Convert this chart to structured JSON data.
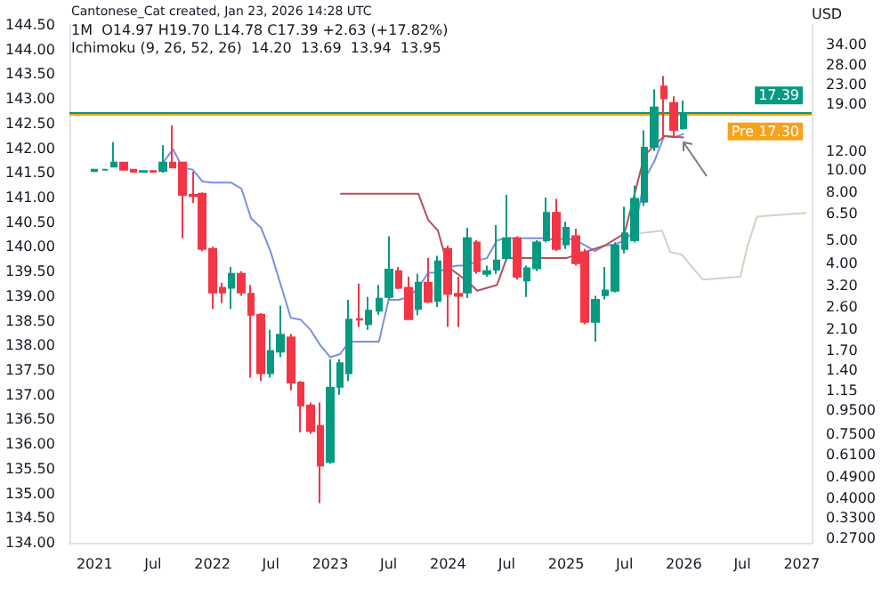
{
  "chart_data": {
    "type": "candlestick",
    "annotations": [
      "Cantonese_Cat created, Jan 23, 2026 14:28 UTC",
      "1M  O14.97 H19.70 L14.78 C17.39 +2.63 (+17.82%)",
      "Ichimoku (9, 26, 52, 26)  14.20  13.69  13.94  13.95"
    ],
    "y2label": "USD",
    "xlim": [
      "2020-10-15",
      "2027-02-01"
    ],
    "xticks": [
      {
        "value": "2021-01",
        "label": "2021"
      },
      {
        "value": "2021-07",
        "label": "Jul"
      },
      {
        "value": "2022-01",
        "label": "2022"
      },
      {
        "value": "2022-07",
        "label": "Jul"
      },
      {
        "value": "2023-01",
        "label": "2023"
      },
      {
        "value": "2023-07",
        "label": "Jul"
      },
      {
        "value": "2024-01",
        "label": "2024"
      },
      {
        "value": "2024-07",
        "label": "Jul"
      },
      {
        "value": "2025-01",
        "label": "2025"
      },
      {
        "value": "2025-07",
        "label": "Jul"
      },
      {
        "value": "2026-01",
        "label": "2026"
      },
      {
        "value": "2026-07",
        "label": "Jul"
      },
      {
        "value": "2027-01",
        "label": "2027"
      }
    ],
    "ylim": [
      134,
      144.5
    ],
    "yticks": [
      {
        "value": 134,
        "label": "134.00"
      },
      {
        "value": 134.5,
        "label": "134.50"
      },
      {
        "value": 135,
        "label": "135.00"
      },
      {
        "value": 135.5,
        "label": "135.50"
      },
      {
        "value": 136,
        "label": "136.00"
      },
      {
        "value": 136.5,
        "label": "136.50"
      },
      {
        "value": 137,
        "label": "137.00"
      },
      {
        "value": 137.5,
        "label": "137.50"
      },
      {
        "value": 138,
        "label": "138.00"
      },
      {
        "value": 138.5,
        "label": "138.50"
      },
      {
        "value": 139,
        "label": "139.00"
      },
      {
        "value": 139.5,
        "label": "139.50"
      },
      {
        "value": 140,
        "label": "140.00"
      },
      {
        "value": 140.5,
        "label": "140.50"
      },
      {
        "value": 141,
        "label": "141.00"
      },
      {
        "value": 141.5,
        "label": "141.50"
      },
      {
        "value": 142,
        "label": "142.00"
      },
      {
        "value": 142.5,
        "label": "142.50"
      },
      {
        "value": 143,
        "label": "143.00"
      },
      {
        "value": 143.5,
        "label": "143.50"
      },
      {
        "value": 144,
        "label": "144.00"
      },
      {
        "value": 144.5,
        "label": "144.50"
      }
    ],
    "log": "y2",
    "y2lim": [
      0.258,
      41.3
    ],
    "y2ticks": [
      {
        "value": 34,
        "label": "34.00"
      },
      {
        "value": 28,
        "label": "28.00"
      },
      {
        "value": 23,
        "label": "23.00"
      },
      {
        "value": 19,
        "label": "19.00"
      },
      {
        "value": 12,
        "label": "12.00"
      },
      {
        "value": 10,
        "label": "10.00"
      },
      {
        "value": 8,
        "label": "8.00"
      },
      {
        "value": 6.5,
        "label": "6.50"
      },
      {
        "value": 5,
        "label": "5.00"
      },
      {
        "value": 4,
        "label": "4.00"
      },
      {
        "value": 3.2,
        "label": "3.20"
      },
      {
        "value": 2.6,
        "label": "2.60"
      },
      {
        "value": 2.1,
        "label": "2.10"
      },
      {
        "value": 1.7,
        "label": "1.70"
      },
      {
        "value": 1.4,
        "label": "1.40"
      },
      {
        "value": 1.15,
        "label": "1.15"
      },
      {
        "value": 0.95,
        "label": "0.9500"
      },
      {
        "value": 0.75,
        "label": "0.7500"
      },
      {
        "value": 0.61,
        "label": "0.6100"
      },
      {
        "value": 0.49,
        "label": "0.4900"
      },
      {
        "value": 0.4,
        "label": "0.4000"
      },
      {
        "value": 0.33,
        "label": "0.3300"
      },
      {
        "value": 0.27,
        "label": "0.2700"
      }
    ],
    "grid": false,
    "ref_lines": [
      {
        "axis": "y2",
        "value": 17.39,
        "label": "17.39",
        "color": "#089981"
      },
      {
        "axis": "y2",
        "value": 17.3,
        "label": "Pre 17.30",
        "color": "#f7a21b"
      }
    ],
    "series": [
      {
        "axis": "y2",
        "x": [
          "2021-01",
          "2021-02",
          "2021-03",
          "2021-04",
          "2021-05",
          "2021-06",
          "2021-07",
          "2021-08",
          "2021-09",
          "2021-10",
          "2021-11",
          "2021-12",
          "2022-01",
          "2022-02",
          "2022-03",
          "2022-04",
          "2022-05",
          "2022-06",
          "2022-07",
          "2022-08",
          "2022-09",
          "2022-10",
          "2022-11",
          "2022-12",
          "2023-01",
          "2023-02",
          "2023-03",
          "2023-04",
          "2023-05",
          "2023-06",
          "2023-07",
          "2023-08",
          "2023-09",
          "2023-10",
          "2023-11",
          "2023-12",
          "2024-01",
          "2024-02",
          "2024-03",
          "2024-04",
          "2024-05",
          "2024-06",
          "2024-07",
          "2024-08",
          "2024-09",
          "2024-10",
          "2024-11",
          "2024-12",
          "2025-01",
          "2025-02",
          "2025-03",
          "2025-04",
          "2025-05",
          "2025-06",
          "2025-07",
          "2025-08",
          "2025-09",
          "2025-10",
          "2025-11",
          "2025-12",
          "2026-01"
        ],
        "ohlc": [
          [
            9.85,
            10.0,
            9.8,
            10.0
          ],
          [
            10.0,
            10.05,
            9.95,
            10.0
          ],
          [
            10.3,
            13.1,
            10.2,
            10.7
          ],
          [
            10.7,
            10.8,
            10.0,
            10.0
          ],
          [
            10.0,
            10.05,
            9.8,
            9.8
          ],
          [
            9.8,
            9.85,
            9.75,
            9.85
          ],
          [
            9.85,
            9.9,
            9.8,
            9.8
          ],
          [
            9.85,
            12.7,
            9.7,
            10.7
          ],
          [
            10.7,
            15.4,
            10.2,
            10.2
          ],
          [
            10.7,
            10.8,
            5.1,
            7.8
          ],
          [
            7.8,
            9.8,
            7.2,
            7.7
          ],
          [
            7.9,
            8.0,
            4.5,
            4.6
          ],
          [
            4.6,
            4.7,
            2.55,
            3.0
          ],
          [
            3.14,
            3.3,
            2.7,
            3.0
          ],
          [
            3.14,
            3.85,
            2.55,
            3.6
          ],
          [
            3.6,
            3.7,
            2.9,
            3.0
          ],
          [
            2.96,
            3.23,
            1.3,
            2.41
          ],
          [
            2.41,
            2.45,
            1.26,
            1.36
          ],
          [
            1.36,
            2.08,
            1.3,
            1.69
          ],
          [
            1.68,
            2.63,
            1.59,
            1.98
          ],
          [
            1.93,
            2.0,
            1.15,
            1.24
          ],
          [
            1.24,
            1.26,
            0.76,
            0.99
          ],
          [
            0.99,
            1.02,
            0.75,
            0.77
          ],
          [
            0.81,
            1.02,
            0.38,
            0.55
          ],
          [
            0.57,
            1.56,
            0.56,
            1.18
          ],
          [
            1.19,
            1.56,
            1.1,
            1.5
          ],
          [
            1.36,
            2.79,
            1.26,
            2.3
          ],
          [
            2.31,
            3.27,
            2.14,
            2.3
          ],
          [
            2.2,
            2.87,
            2.08,
            2.51
          ],
          [
            2.51,
            3.23,
            2.41,
            2.82
          ],
          [
            2.87,
            5.2,
            2.8,
            3.75
          ],
          [
            3.7,
            3.85,
            3.1,
            3.14
          ],
          [
            3.14,
            3.5,
            2.3,
            2.31
          ],
          [
            2.55,
            3.6,
            2.4,
            3.3
          ],
          [
            3.3,
            4.2,
            2.7,
            2.74
          ],
          [
            2.76,
            4.3,
            2.6,
            4.07
          ],
          [
            4.6,
            4.75,
            2.14,
            2.96
          ],
          [
            2.96,
            3.5,
            2.14,
            2.9
          ],
          [
            3.0,
            5.65,
            2.84,
            5.1
          ],
          [
            4.9,
            5.0,
            3.6,
            3.7
          ],
          [
            3.6,
            3.9,
            3.5,
            3.7
          ],
          [
            3.75,
            5.8,
            3.6,
            4.1
          ],
          [
            4.2,
            7.8,
            4.1,
            5.1
          ],
          [
            5.1,
            5.2,
            3.4,
            3.5
          ],
          [
            3.37,
            3.9,
            2.87,
            3.8
          ],
          [
            3.8,
            5.0,
            3.7,
            4.9
          ],
          [
            5.0,
            7.6,
            4.9,
            6.55
          ],
          [
            6.55,
            7.5,
            4.5,
            4.6
          ],
          [
            4.8,
            6.0,
            4.6,
            5.65
          ],
          [
            5.2,
            5.6,
            3.9,
            4.0
          ],
          [
            4.45,
            4.6,
            2.2,
            2.25
          ],
          [
            2.25,
            2.9,
            1.85,
            2.79
          ],
          [
            2.92,
            3.85,
            2.8,
            3.06
          ],
          [
            3.05,
            4.9,
            3.0,
            4.75
          ],
          [
            4.6,
            6.95,
            4.4,
            5.35
          ],
          [
            5.0,
            8.55,
            4.9,
            7.5
          ],
          [
            7.3,
            14.7,
            7.0,
            12.4
          ],
          [
            12.5,
            22.0,
            12.0,
            18.4
          ],
          [
            22.6,
            25.0,
            13.7,
            20.1
          ],
          [
            19.2,
            20.5,
            13.7,
            14.76
          ],
          [
            14.97,
            19.7,
            14.78,
            17.39
          ]
        ],
        "colors": [
          "#089981",
          "#089981",
          "#089981",
          "#f23645",
          "#f23645",
          "#089981",
          "#f23645",
          "#089981",
          "#f23645",
          "#f23645",
          "#f23645",
          "#f23645",
          "#f23645",
          "#f23645",
          "#089981",
          "#f23645",
          "#f23645",
          "#f23645",
          "#089981",
          "#089981",
          "#f23645",
          "#f23645",
          "#f23645",
          "#f23645",
          "#089981",
          "#089981",
          "#089981",
          "#f23645",
          "#089981",
          "#089981",
          "#089981",
          "#f23645",
          "#f23645",
          "#089981",
          "#f23645",
          "#089981",
          "#f23645",
          "#f23645",
          "#089981",
          "#f23645",
          "#089981",
          "#089981",
          "#089981",
          "#f23645",
          "#089981",
          "#089981",
          "#089981",
          "#f23645",
          "#089981",
          "#f23645",
          "#f23645",
          "#089981",
          "#089981",
          "#089981",
          "#089981",
          "#089981",
          "#089981",
          "#089981",
          "#f23645",
          "#f23645",
          "#089981"
        ]
      },
      {
        "type": "line",
        "axis": "y2",
        "color": "#7b8fe0",
        "x": [
          "2021-08",
          "2021-09",
          "2021-10",
          "2021-11",
          "2021-12",
          "2022-01",
          "2022-02",
          "2022-03",
          "2022-04",
          "2022-05",
          "2022-06",
          "2022-07",
          "2022-08",
          "2022-09",
          "2022-10",
          "2022-11",
          "2022-12",
          "2023-01",
          "2023-02",
          "2023-03",
          "2023-04",
          "2023-05",
          "2023-06",
          "2023-07",
          "2023-08",
          "2023-09",
          "2023-10",
          "2023-11",
          "2023-12",
          "2024-01",
          "2024-02",
          "2024-03",
          "2024-04",
          "2024-05",
          "2024-06",
          "2024-07",
          "2024-08",
          "2024-09",
          "2024-10",
          "2024-11",
          "2024-12",
          "2025-01",
          "2025-02",
          "2025-03",
          "2025-04",
          "2025-05",
          "2025-06",
          "2025-07",
          "2025-08",
          "2025-09",
          "2025-10",
          "2025-11",
          "2025-12",
          "2026-01"
        ],
        "values": [
          10.7,
          12.2,
          10.2,
          10.0,
          8.9,
          8.8,
          8.8,
          8.8,
          8.3,
          6.2,
          5.65,
          4.45,
          3.23,
          2.34,
          2.3,
          2.08,
          1.79,
          1.59,
          1.64,
          1.85,
          1.85,
          1.85,
          1.85,
          2.79,
          2.79,
          2.87,
          3.14,
          3.64,
          3.64,
          3.85,
          3.9,
          3.9,
          4.1,
          4.2,
          5.0,
          5.1,
          5.1,
          5.1,
          5.1,
          5.1,
          5.0,
          5.1,
          5.0,
          4.75,
          4.5,
          4.75,
          4.8,
          5.0,
          5.5,
          9.1,
          10.8,
          13.9,
          13.7,
          14.2
        ]
      },
      {
        "type": "line",
        "axis": "y2",
        "color": "#b4505c",
        "x": [
          "2023-02",
          "2023-10",
          "2023-11",
          "2023-12",
          "2024-01",
          "2024-03",
          "2024-04",
          "2024-06",
          "2024-07",
          "2025-01",
          "2025-05",
          "2025-07",
          "2025-09",
          "2025-11",
          "2026-01"
        ],
        "values": [
          7.9,
          7.9,
          6.1,
          5.5,
          3.85,
          3.35,
          3.05,
          3.23,
          4.2,
          4.2,
          4.75,
          5.35,
          11.5,
          13.9,
          13.69
        ]
      },
      {
        "type": "line",
        "axis": "y2",
        "color": "#c5d9c0",
        "x": [
          "2025-07-18",
          "2025-10-25",
          "2025-11-20",
          "2025-12-25",
          "2026-03-01",
          "2026-06-25",
          "2026-07-15",
          "2026-08-15",
          "2027-01-15"
        ],
        "values": [
          5.3,
          5.5,
          4.45,
          4.35,
          3.4,
          3.5,
          4.6,
          6.3,
          6.55
        ]
      }
    ]
  }
}
